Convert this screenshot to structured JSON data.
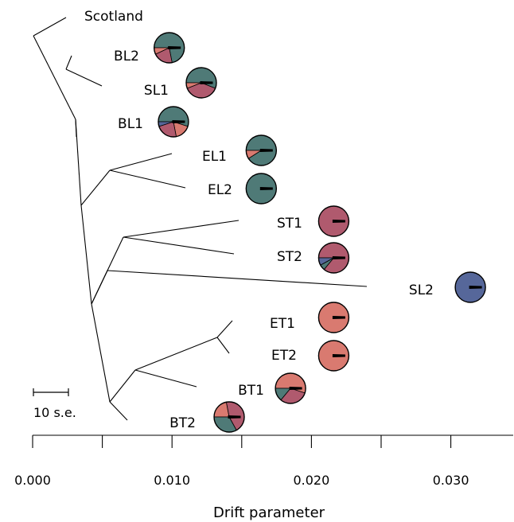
{
  "chart_data": {
    "type": "tree",
    "xlabel": "Drift parameter",
    "xlim": [
      0.0,
      0.035
    ],
    "xticks": [
      0.0,
      0.005,
      0.01,
      0.015,
      0.02,
      0.025,
      0.03,
      0.035
    ],
    "xtick_labels": [
      "0.000",
      "0.010",
      "0.020",
      "0.030"
    ],
    "xtick_label_values": [
      0.0,
      0.01,
      0.02,
      0.03
    ],
    "scale_bar_label": "10 s.e.",
    "colors": {
      "teal": "#4f7a77",
      "maroon": "#b05a6e",
      "salmon": "#d97a70",
      "blue": "#56679a"
    },
    "leaves": [
      {
        "name": "Scotland",
        "drift": 0.0025,
        "pie": null
      },
      {
        "name": "BL2",
        "drift": 0.0098,
        "pie": [
          {
            "c": "teal",
            "v": 0.72
          },
          {
            "c": "maroon",
            "v": 0.21
          },
          {
            "c": "salmon",
            "v": 0.07
          }
        ]
      },
      {
        "name": "SL1",
        "drift": 0.0121,
        "pie": [
          {
            "c": "teal",
            "v": 0.56
          },
          {
            "c": "maroon",
            "v": 0.38
          },
          {
            "c": "salmon",
            "v": 0.06
          }
        ]
      },
      {
        "name": "BL1",
        "drift": 0.0101,
        "pie": [
          {
            "c": "teal",
            "v": 0.55
          },
          {
            "c": "salmon",
            "v": 0.17
          },
          {
            "c": "maroon",
            "v": 0.23
          },
          {
            "c": "blue",
            "v": 0.05
          }
        ]
      },
      {
        "name": "EL1",
        "drift": 0.0164,
        "pie": [
          {
            "c": "teal",
            "v": 0.91
          },
          {
            "c": "salmon",
            "v": 0.09
          }
        ]
      },
      {
        "name": "EL2",
        "drift": 0.0164,
        "pie": [
          {
            "c": "teal",
            "v": 1.0
          }
        ]
      },
      {
        "name": "ST1",
        "drift": 0.0216,
        "pie": [
          {
            "c": "maroon",
            "v": 1.0
          }
        ]
      },
      {
        "name": "ST2",
        "drift": 0.0216,
        "pie": [
          {
            "c": "maroon",
            "v": 0.86
          },
          {
            "c": "teal",
            "v": 0.06
          },
          {
            "c": "blue",
            "v": 0.08
          }
        ]
      },
      {
        "name": "SL2",
        "drift": 0.0314,
        "pie": [
          {
            "c": "blue",
            "v": 1.0
          }
        ]
      },
      {
        "name": "ET1",
        "drift": 0.0216,
        "pie": [
          {
            "c": "salmon",
            "v": 1.0
          }
        ]
      },
      {
        "name": "ET2",
        "drift": 0.0216,
        "pie": [
          {
            "c": "salmon",
            "v": 1.0
          }
        ]
      },
      {
        "name": "BT1",
        "drift": 0.0185,
        "pie": [
          {
            "c": "salmon",
            "v": 0.55
          },
          {
            "c": "maroon",
            "v": 0.31
          },
          {
            "c": "teal",
            "v": 0.14
          }
        ]
      },
      {
        "name": "BT2",
        "drift": 0.0141,
        "pie": [
          {
            "c": "salmon",
            "v": 0.22
          },
          {
            "c": "maroon",
            "v": 0.45
          },
          {
            "c": "teal",
            "v": 0.33
          }
        ]
      }
    ]
  }
}
